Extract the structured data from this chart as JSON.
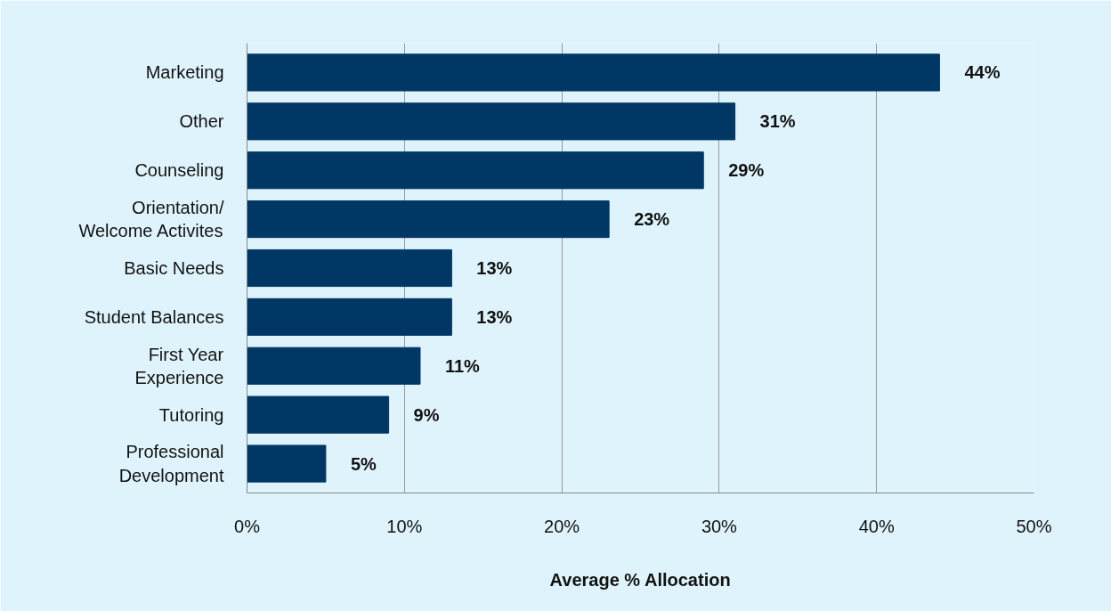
{
  "chart_data": {
    "type": "bar",
    "orientation": "horizontal",
    "xlabel": "Average % Allocation",
    "categories": [
      "Marketing",
      "Other",
      "Counseling",
      "Orientation/\nWelcome Activites",
      "Basic Needs",
      "Student Balances",
      "First Year\nExperience",
      "Tutoring",
      "Professional\nDevelopment"
    ],
    "values": [
      44,
      31,
      29,
      23,
      13,
      13,
      11,
      9,
      5
    ],
    "value_labels": [
      "44%",
      "31%",
      "29%",
      "23%",
      "13%",
      "13%",
      "11%",
      "9%",
      "5%"
    ],
    "color": "#003764",
    "xlim": [
      0,
      50
    ],
    "xticks": [
      {
        "value": 0,
        "label": "0%"
      },
      {
        "value": 10,
        "label": "10%"
      },
      {
        "value": 20,
        "label": "20%"
      },
      {
        "value": 30,
        "label": "30%"
      },
      {
        "value": 40,
        "label": "40%"
      },
      {
        "value": 50,
        "label": "50%"
      }
    ],
    "grid": "x"
  }
}
